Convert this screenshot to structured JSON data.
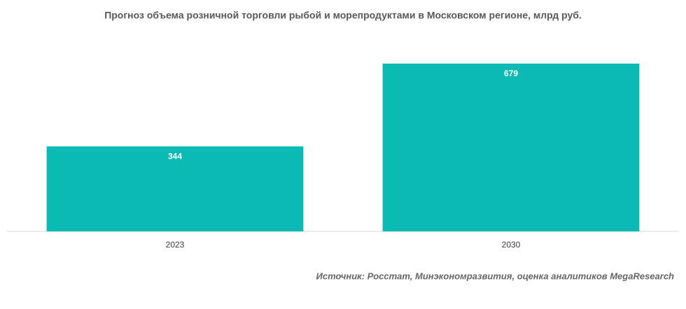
{
  "chart_data": {
    "type": "bar",
    "title": "Прогноз объема розничной торговли рыбой и морепродуктами в Московском регионе, млрд руб.",
    "categories": [
      "2023",
      "2030"
    ],
    "values": [
      344,
      679
    ],
    "color": "#0bbab5",
    "source": "Источник: Росстат, Минэкономразвития, оценка  аналитиков MegaResearch"
  }
}
